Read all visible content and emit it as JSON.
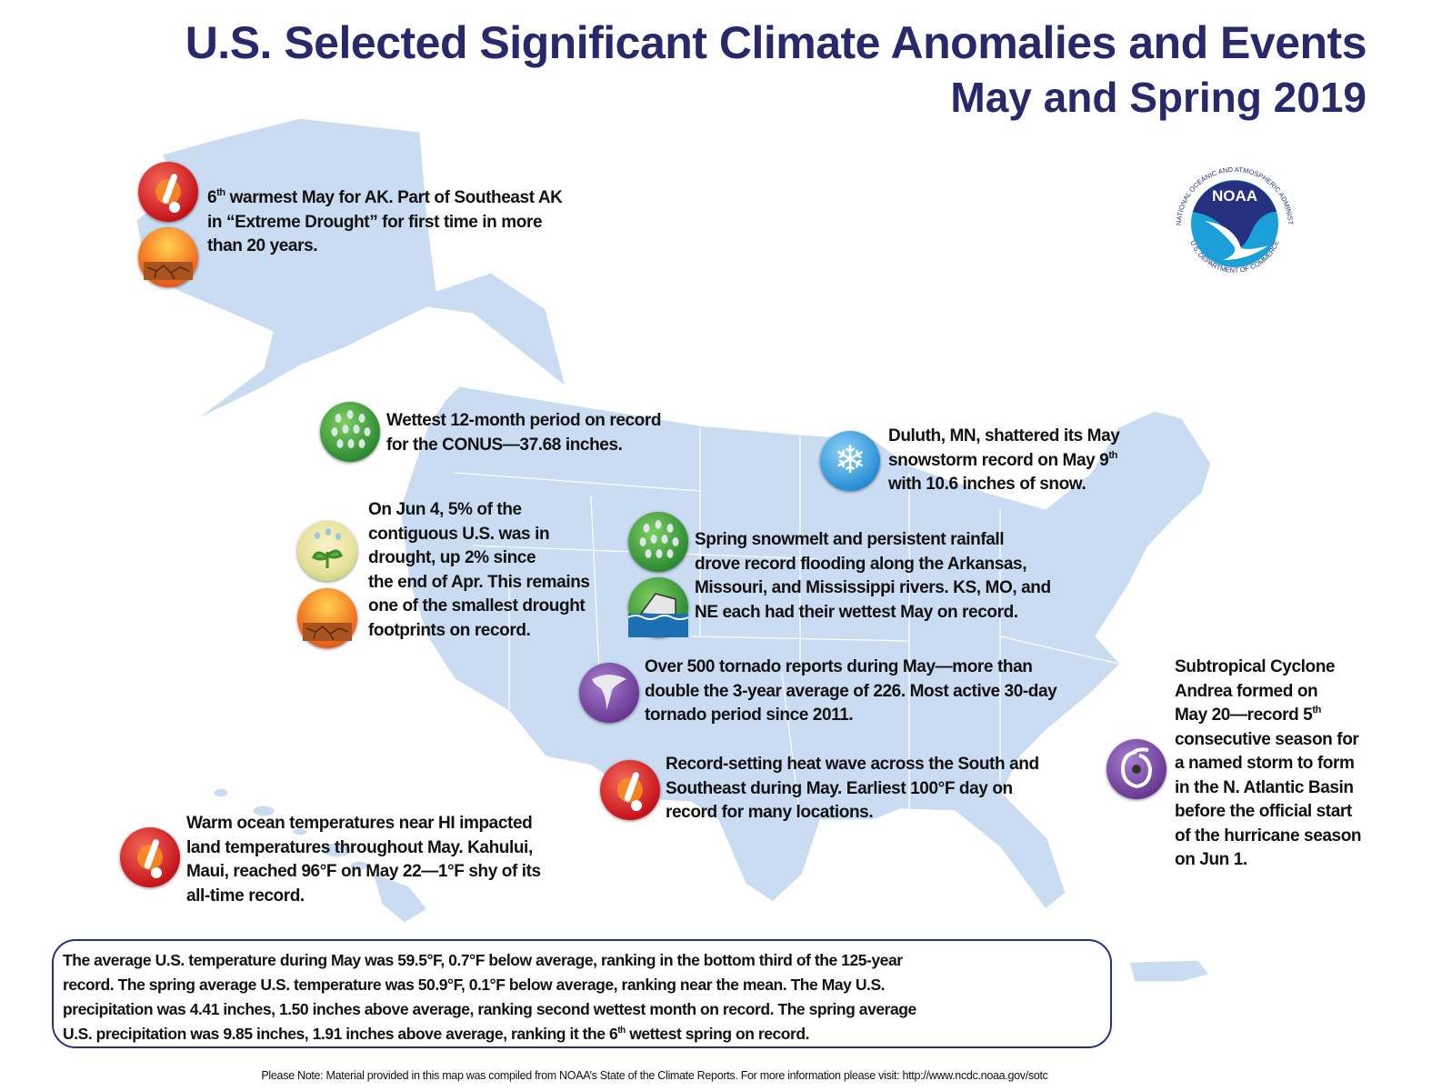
{
  "header": {
    "title": "U.S. Selected Significant Climate Anomalies and Events",
    "subtitle": "May and Spring 2019"
  },
  "logo": {
    "text": "NOAA",
    "ring_top": "NATIONAL OCEANIC AND ATMOSPHERIC ADMINISTRATION",
    "ring_bottom": "U.S. DEPARTMENT OF COMMERCE"
  },
  "colors": {
    "title": "#28296b",
    "land": "#c9dcf2",
    "state_border": "#ffffff",
    "box_border": "#2b2f7a"
  },
  "annotations": [
    {
      "id": "alaska",
      "icons": [
        "thermometer-heat-icon",
        "drought-icon"
      ],
      "lines": [
        {
          "text": "6",
          "sup": "th",
          "after": " warmest May for AK. Part of Southeast AK"
        },
        "in “Extreme Drought” for first time in more",
        "than 20 years."
      ]
    },
    {
      "id": "wettest-12-month",
      "icons": [
        "rain-icon"
      ],
      "lines": [
        "Wettest 12-month period on record",
        "for the CONUS—37.68 inches."
      ]
    },
    {
      "id": "drought-footprint",
      "icons": [
        "drought-relief-icon",
        "drought-icon"
      ],
      "lines": [
        "On Jun 4, 5% of the",
        "contiguous U.S. was in",
        "drought, up 2% since",
        "the end of Apr. This remains",
        "one of the smallest drought",
        "footprints on record."
      ]
    },
    {
      "id": "duluth-snow",
      "icons": [
        "snowflake-icon"
      ],
      "lines": [
        "Duluth, MN, shattered its May",
        {
          "text": "snowstorm record on May 9",
          "sup": "th",
          "after": ""
        },
        "with 10.6 inches of snow."
      ]
    },
    {
      "id": "flooding",
      "icons": [
        "rain-icon",
        "flood-icon"
      ],
      "lines": [
        "Spring snowmelt and persistent rainfall",
        "drove record flooding along the Arkansas,",
        "Missouri, and Mississippi rivers. KS, MO, and",
        "NE each had their wettest May on record."
      ]
    },
    {
      "id": "tornadoes",
      "icons": [
        "tornado-icon"
      ],
      "lines": [
        "Over 500 tornado reports during May—more than",
        "double the 3-year average of 226. Most active 30-day",
        "tornado period since 2011."
      ]
    },
    {
      "id": "heat-wave",
      "icons": [
        "thermometer-heat-icon"
      ],
      "lines": [
        "Record-setting heat wave across the South and",
        "Southeast during May. Earliest 100°F day on",
        "record for many locations."
      ]
    },
    {
      "id": "andrea",
      "icons": [
        "tropical-cyclone-icon"
      ],
      "lines": [
        "Subtropical Cyclone",
        "Andrea formed on",
        {
          "text": "May 20—record 5",
          "sup": "th",
          "after": ""
        },
        "consecutive season for",
        "a named storm to form",
        "in the N. Atlantic Basin",
        "before the official start",
        "of the hurricane season",
        "on Jun 1."
      ]
    },
    {
      "id": "hawaii",
      "icons": [
        "thermometer-heat-icon"
      ],
      "lines": [
        "Warm ocean temperatures near HI impacted",
        "land temperatures throughout May.  Kahului,",
        "Maui, reached 96°F on May 22—1°F shy of its",
        "all-time record."
      ]
    }
  ],
  "summary": {
    "lines": [
      "The average U.S. temperature during May was 59.5°F, 0.7°F below average, ranking in the bottom third of the 125-year",
      "record. The spring average U.S. temperature was 50.9°F, 0.1°F below average, ranking near the mean. The May U.S.",
      "precipitation was 4.41 inches, 1.50 inches above average, ranking second wettest month on record. The spring average",
      {
        "text": "U.S. precipitation was 9.85 inches, 1.91 inches above average, ranking it the 6",
        "sup": "th",
        "after": " wettest spring on record."
      }
    ]
  },
  "footer": {
    "note": "Please Note: Material provided in this map was compiled from NOAA’s State of the Climate Reports. For more information please visit: http://www.ncdc.noaa.gov/sotc"
  }
}
